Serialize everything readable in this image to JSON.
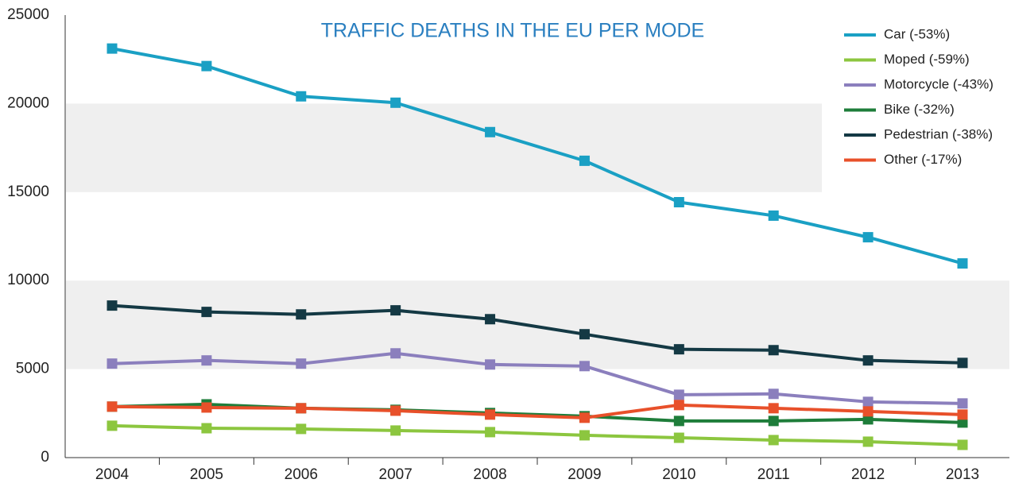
{
  "chart_data": {
    "type": "line",
    "title": "TRAFFIC DEATHS IN THE EU PER MODE",
    "categories": [
      "2004",
      "2005",
      "2006",
      "2007",
      "2008",
      "2009",
      "2010",
      "2011",
      "2012",
      "2013"
    ],
    "series": [
      {
        "name": "Car (-53%)",
        "color": "#1aa0c4",
        "values": [
          23110,
          22120,
          20410,
          20050,
          18390,
          16770,
          14430,
          13670,
          12450,
          10970
        ]
      },
      {
        "name": "Moped (-59%)",
        "color": "#8cc63f",
        "values": [
          1800,
          1660,
          1620,
          1530,
          1440,
          1260,
          1120,
          990,
          900,
          720
        ]
      },
      {
        "name": "Motorcycle (-43%)",
        "color": "#8b7fbd",
        "values": [
          5310,
          5490,
          5310,
          5890,
          5260,
          5170,
          3550,
          3600,
          3150,
          3060
        ]
      },
      {
        "name": "Bike (-32%)",
        "color": "#1e7d3a",
        "values": [
          2880,
          3010,
          2790,
          2700,
          2520,
          2340,
          2070,
          2070,
          2160,
          1980
        ]
      },
      {
        "name": "Pedestrian (-38%)",
        "color": "#143944",
        "values": [
          8590,
          8230,
          8090,
          8320,
          7820,
          6970,
          6120,
          6070,
          5490,
          5350
        ]
      },
      {
        "name": "Other (-17%)",
        "color": "#e8502a",
        "values": [
          2880,
          2830,
          2790,
          2650,
          2430,
          2250,
          2970,
          2790,
          2610,
          2430
        ]
      }
    ],
    "ylim": [
      0,
      25000
    ],
    "yticks": [
      0,
      5000,
      10000,
      15000,
      20000,
      25000
    ],
    "bands": true,
    "legend": "top-right"
  }
}
